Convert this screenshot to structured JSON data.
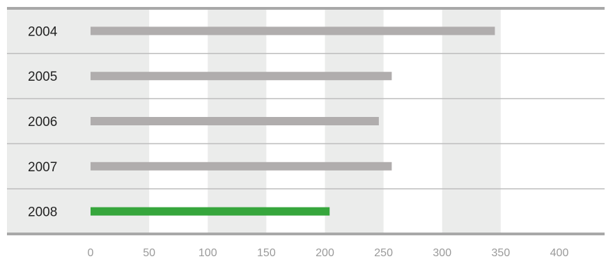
{
  "chart_data": {
    "type": "bar",
    "orientation": "horizontal",
    "categories": [
      "2004",
      "2005",
      "2006",
      "2007",
      "2008"
    ],
    "values": [
      345,
      257,
      246,
      257,
      204
    ],
    "xlim": [
      0,
      400
    ],
    "x_ticks": [
      "0",
      "50",
      "100",
      "150",
      "200",
      "250",
      "300",
      "350",
      "400"
    ],
    "title": "",
    "xlabel": "",
    "ylabel": "",
    "legend": "none",
    "grid": "alternating vertical bands every 50 units",
    "colors": {
      "bar_default": "#b0adad",
      "bar_highlight": "#36a63c",
      "band": "#ebeceb",
      "row_divider": "#bdbdbd",
      "frame_rule": "#a8a8a8"
    },
    "highlight_category": "2008"
  }
}
